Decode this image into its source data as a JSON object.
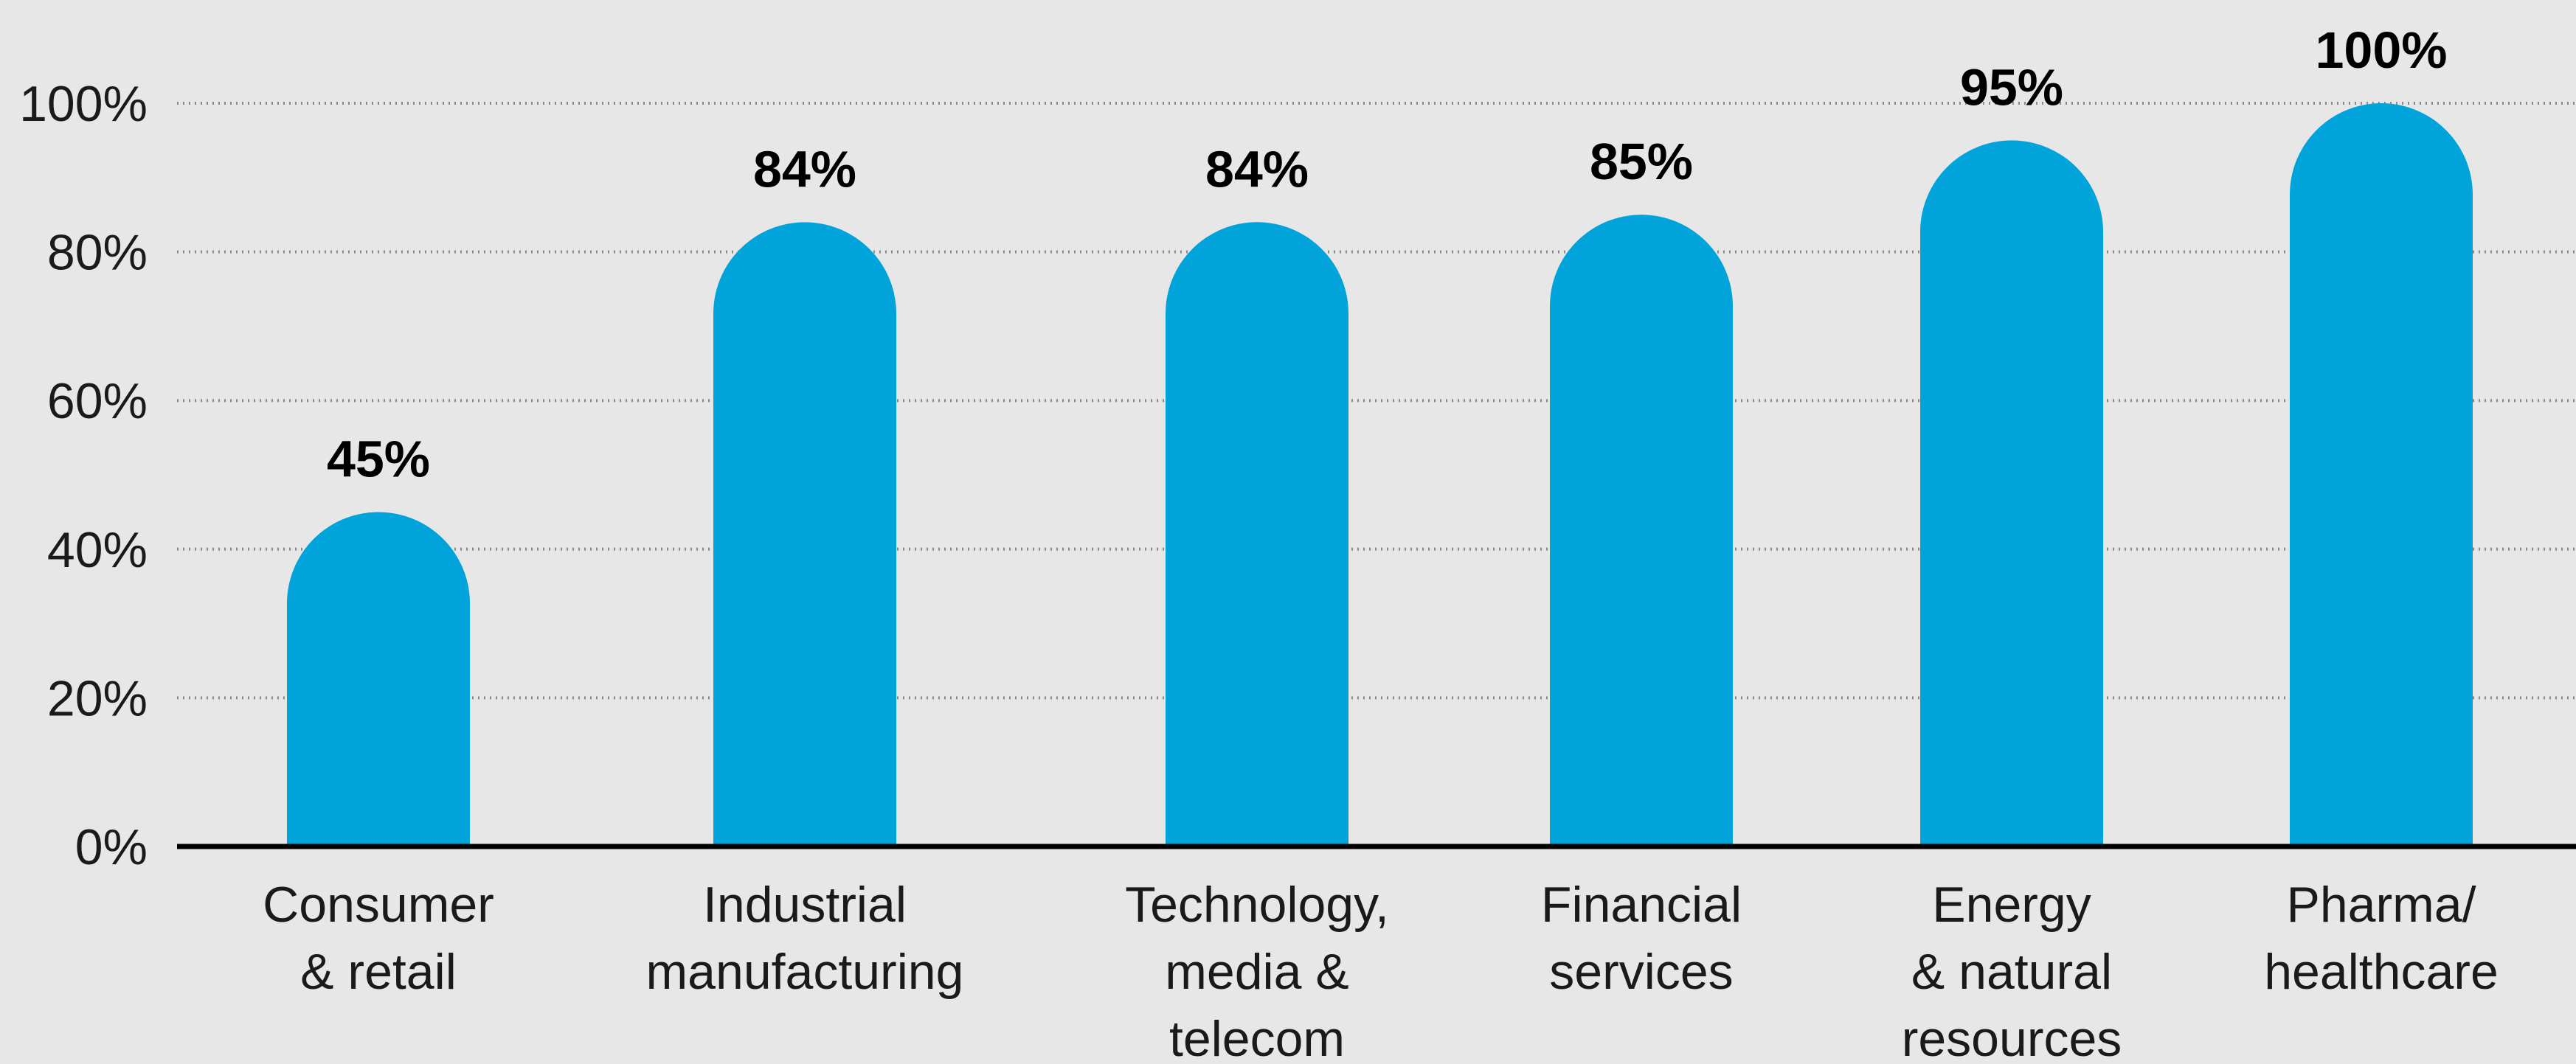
{
  "chart_data": {
    "type": "bar",
    "categories": [
      [
        "Consumer",
        "& retail"
      ],
      [
        "Industrial",
        "manufacturing"
      ],
      [
        "Technology,",
        "media &",
        "telecom"
      ],
      [
        "Financial",
        "services"
      ],
      [
        "Energy",
        "& natural",
        "resources"
      ],
      [
        "Pharma/",
        "healthcare"
      ]
    ],
    "values": [
      45,
      84,
      84,
      85,
      95,
      100
    ],
    "data_labels": [
      "45%",
      "84%",
      "84%",
      "85%",
      "95%",
      "100%"
    ],
    "y_ticks": [
      0,
      20,
      40,
      60,
      80,
      100
    ],
    "y_tick_labels": [
      "0%",
      "20%",
      "40%",
      "60%",
      "80%",
      "100%"
    ],
    "ylim": [
      0,
      100
    ],
    "grid": true,
    "bar_color": "#00a3da",
    "background_color": "#e7e7e7",
    "text_color": "#1a1a1a",
    "grid_color": "#8a8a8a",
    "axis_color": "#000000"
  }
}
